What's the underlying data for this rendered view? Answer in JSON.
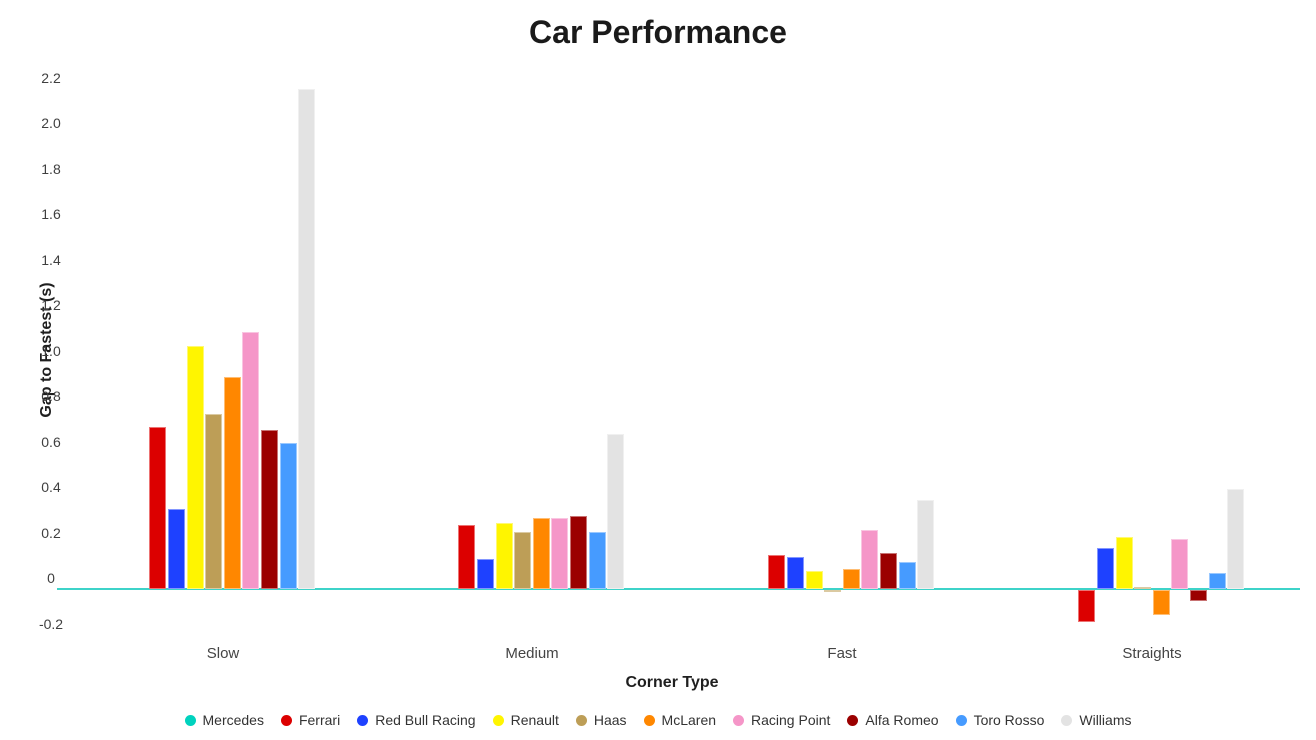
{
  "title": "Car Performance",
  "chart_data": {
    "type": "bar",
    "title": "Car Performance",
    "xlabel": "Corner Type",
    "ylabel": "Gap to Fastest (s)",
    "categories": [
      "Slow",
      "Medium",
      "Fast",
      "Straights"
    ],
    "series": [
      {
        "name": "Mercedes",
        "color": "#00D2BE",
        "values": [
          0,
          0,
          0,
          0
        ]
      },
      {
        "name": "Ferrari",
        "color": "#DC0000",
        "values": [
          0.71,
          0.28,
          0.15,
          -0.14
        ]
      },
      {
        "name": "Red Bull Racing",
        "color": "#1E41FF",
        "values": [
          0.35,
          0.13,
          0.14,
          0.18
        ]
      },
      {
        "name": "Renault",
        "color": "#FFF500",
        "values": [
          1.07,
          0.29,
          0.08,
          0.23
        ]
      },
      {
        "name": "Haas",
        "color": "#BD9E57",
        "values": [
          0.77,
          0.25,
          -0.01,
          0.01
        ]
      },
      {
        "name": "McLaren",
        "color": "#FF8700",
        "values": [
          0.93,
          0.31,
          0.09,
          -0.11
        ]
      },
      {
        "name": "Racing Point",
        "color": "#F596C8",
        "values": [
          1.13,
          0.31,
          0.26,
          0.22
        ]
      },
      {
        "name": "Alfa Romeo",
        "color": "#9B0000",
        "values": [
          0.7,
          0.32,
          0.16,
          -0.05
        ]
      },
      {
        "name": "Toro Rosso",
        "color": "#469BFF",
        "values": [
          0.64,
          0.25,
          0.12,
          0.07
        ]
      },
      {
        "name": "Williams",
        "color": "#E3E3E3",
        "values": [
          2.2,
          0.68,
          0.39,
          0.44
        ]
      }
    ],
    "ylim": [
      -0.2,
      2.2
    ],
    "ytick_step": 0.2,
    "grid": false,
    "legend_position": "bottom",
    "zero_line_color": "#3ED3C9"
  }
}
